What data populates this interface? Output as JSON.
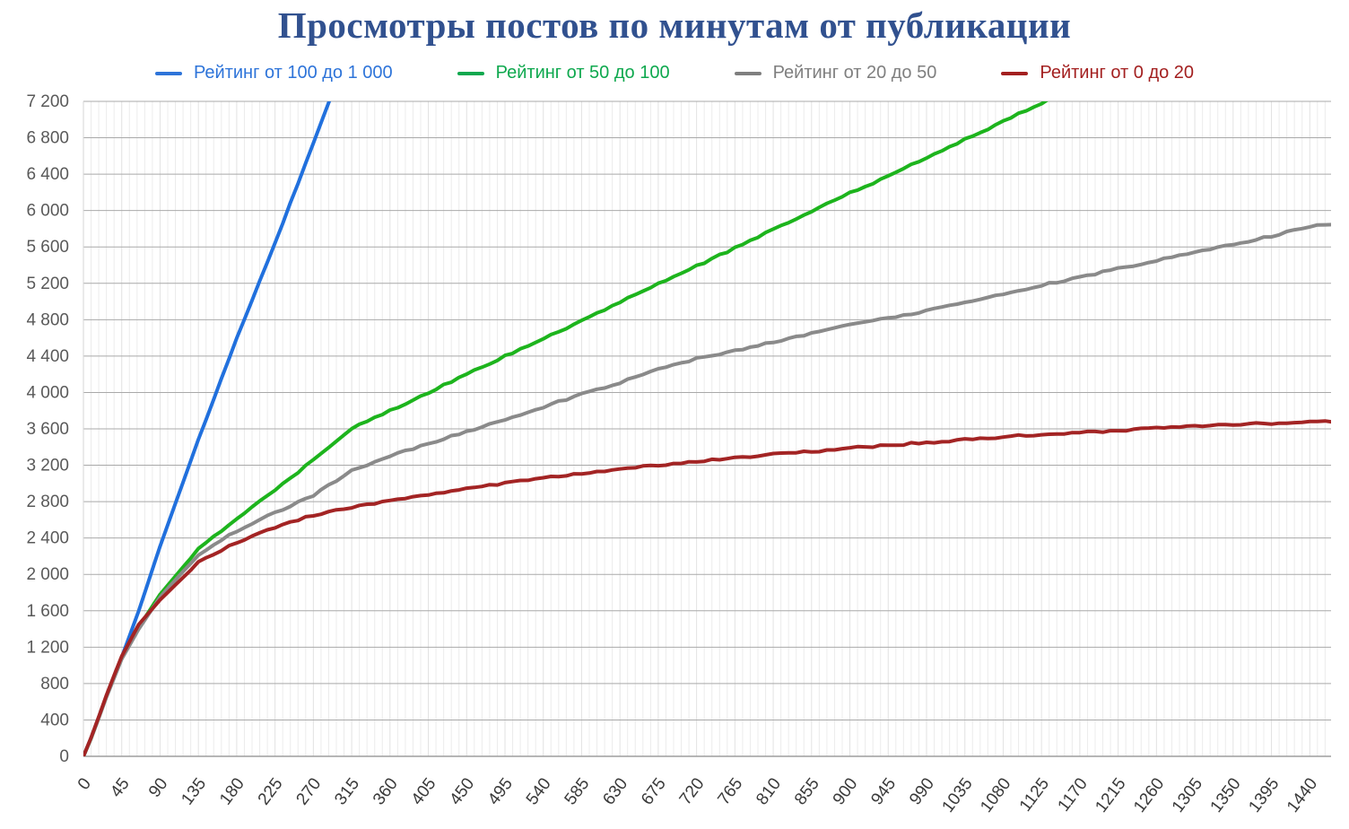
{
  "title": "Просмотры постов по минутам от публикации",
  "colors": {
    "title": "#31518f",
    "y_tick_labels": "#595959",
    "x_tick_labels": "#3a3a3a",
    "major_gridline": "#a9a9a9",
    "minor_gridline": "#ececec",
    "major_vertical_gridline": "#e2e2e2",
    "axis_line": "#9d9d9d"
  },
  "legend": {
    "position": "top",
    "items": [
      {
        "label": "Рейтинг от 100 до 1 000",
        "color": "#2e74d9"
      },
      {
        "label": "Рейтинг от 50 до 100",
        "color": "#0ea84e"
      },
      {
        "label": "Рейтинг от 20 до 50",
        "color": "#7f7f7f"
      },
      {
        "label": "Рейтинг от 0 до 20",
        "color": "#a32020"
      }
    ]
  },
  "chart_data": {
    "type": "line",
    "title": "Просмотры постов по минутам от публикации",
    "xlabel": "",
    "ylabel": "",
    "grid": true,
    "legend_position": "top",
    "x_axis": {
      "min": 0,
      "max": 1465,
      "tick_step": 45,
      "minor_step": 9,
      "tick_labels": [
        "0",
        "45",
        "90",
        "135",
        "180",
        "225",
        "270",
        "315",
        "360",
        "405",
        "450",
        "495",
        "540",
        "585",
        "630",
        "675",
        "720",
        "765",
        "810",
        "855",
        "900",
        "945",
        "990",
        "1035",
        "1080",
        "1125",
        "1170",
        "1215",
        "1260",
        "1305",
        "1350",
        "1395",
        "1440"
      ]
    },
    "y_axis": {
      "min": 0,
      "max": 7200,
      "tick_step": 400,
      "tick_labels": [
        "0",
        "400",
        "800",
        "1 200",
        "1 600",
        "2 000",
        "2 400",
        "2 800",
        "3 200",
        "3 600",
        "4 000",
        "4 400",
        "4 800",
        "5 200",
        "5 600",
        "6 000",
        "6 400",
        "6 800",
        "7 200"
      ]
    },
    "series": [
      {
        "name": "Рейтинг от 100 до 1 000",
        "color": "#2170dd",
        "points": [
          [
            0,
            0
          ],
          [
            9,
            200
          ],
          [
            18,
            430
          ],
          [
            27,
            660
          ],
          [
            36,
            880
          ],
          [
            45,
            1090
          ],
          [
            65,
            1600
          ],
          [
            90,
            2310
          ],
          [
            135,
            3480
          ],
          [
            180,
            4600
          ],
          [
            225,
            5640
          ],
          [
            270,
            6740
          ],
          [
            300,
            7480
          ]
        ]
      },
      {
        "name": "Рейтинг от 50 до 100",
        "color": "#1db41d",
        "points": [
          [
            0,
            0
          ],
          [
            9,
            195
          ],
          [
            18,
            425
          ],
          [
            27,
            655
          ],
          [
            36,
            870
          ],
          [
            45,
            1075
          ],
          [
            65,
            1420
          ],
          [
            90,
            1780
          ],
          [
            135,
            2280
          ],
          [
            180,
            2620
          ],
          [
            225,
            2920
          ],
          [
            270,
            3260
          ],
          [
            315,
            3600
          ],
          [
            360,
            3800
          ],
          [
            405,
            4000
          ],
          [
            450,
            4200
          ],
          [
            495,
            4400
          ],
          [
            540,
            4590
          ],
          [
            585,
            4790
          ],
          [
            630,
            4990
          ],
          [
            675,
            5190
          ],
          [
            720,
            5390
          ],
          [
            765,
            5590
          ],
          [
            810,
            5790
          ],
          [
            855,
            5990
          ],
          [
            900,
            6190
          ],
          [
            945,
            6380
          ],
          [
            990,
            6580
          ],
          [
            1035,
            6780
          ],
          [
            1080,
            6980
          ],
          [
            1125,
            7180
          ],
          [
            1165,
            7360
          ]
        ]
      },
      {
        "name": "Рейтинг от 20 до 50",
        "color": "#8a8a8a",
        "points": [
          [
            0,
            0
          ],
          [
            9,
            195
          ],
          [
            18,
            420
          ],
          [
            27,
            650
          ],
          [
            36,
            860
          ],
          [
            45,
            1070
          ],
          [
            65,
            1400
          ],
          [
            90,
            1750
          ],
          [
            135,
            2220
          ],
          [
            180,
            2480
          ],
          [
            225,
            2680
          ],
          [
            270,
            2870
          ],
          [
            315,
            3140
          ],
          [
            360,
            3300
          ],
          [
            405,
            3440
          ],
          [
            450,
            3570
          ],
          [
            495,
            3700
          ],
          [
            540,
            3840
          ],
          [
            585,
            3980
          ],
          [
            630,
            4110
          ],
          [
            675,
            4250
          ],
          [
            720,
            4370
          ],
          [
            765,
            4460
          ],
          [
            810,
            4550
          ],
          [
            855,
            4650
          ],
          [
            900,
            4740
          ],
          [
            945,
            4820
          ],
          [
            990,
            4900
          ],
          [
            1035,
            4980
          ],
          [
            1080,
            5080
          ],
          [
            1125,
            5180
          ],
          [
            1170,
            5270
          ],
          [
            1215,
            5360
          ],
          [
            1260,
            5450
          ],
          [
            1305,
            5540
          ],
          [
            1350,
            5630
          ],
          [
            1395,
            5720
          ],
          [
            1440,
            5830
          ],
          [
            1465,
            5845
          ]
        ]
      },
      {
        "name": "Рейтинг от 0 до 20",
        "color": "#a32424",
        "points": [
          [
            0,
            0
          ],
          [
            9,
            205
          ],
          [
            18,
            435
          ],
          [
            27,
            670
          ],
          [
            36,
            890
          ],
          [
            45,
            1100
          ],
          [
            65,
            1450
          ],
          [
            90,
            1720
          ],
          [
            135,
            2130
          ],
          [
            180,
            2350
          ],
          [
            225,
            2520
          ],
          [
            270,
            2650
          ],
          [
            315,
            2740
          ],
          [
            360,
            2810
          ],
          [
            405,
            2880
          ],
          [
            450,
            2940
          ],
          [
            495,
            3000
          ],
          [
            540,
            3060
          ],
          [
            585,
            3110
          ],
          [
            630,
            3160
          ],
          [
            675,
            3200
          ],
          [
            720,
            3240
          ],
          [
            765,
            3280
          ],
          [
            810,
            3320
          ],
          [
            855,
            3350
          ],
          [
            900,
            3390
          ],
          [
            945,
            3420
          ],
          [
            990,
            3450
          ],
          [
            1035,
            3480
          ],
          [
            1080,
            3510
          ],
          [
            1125,
            3540
          ],
          [
            1170,
            3560
          ],
          [
            1215,
            3580
          ],
          [
            1260,
            3610
          ],
          [
            1305,
            3630
          ],
          [
            1350,
            3650
          ],
          [
            1395,
            3660
          ],
          [
            1440,
            3680
          ],
          [
            1465,
            3685
          ]
        ]
      }
    ]
  }
}
